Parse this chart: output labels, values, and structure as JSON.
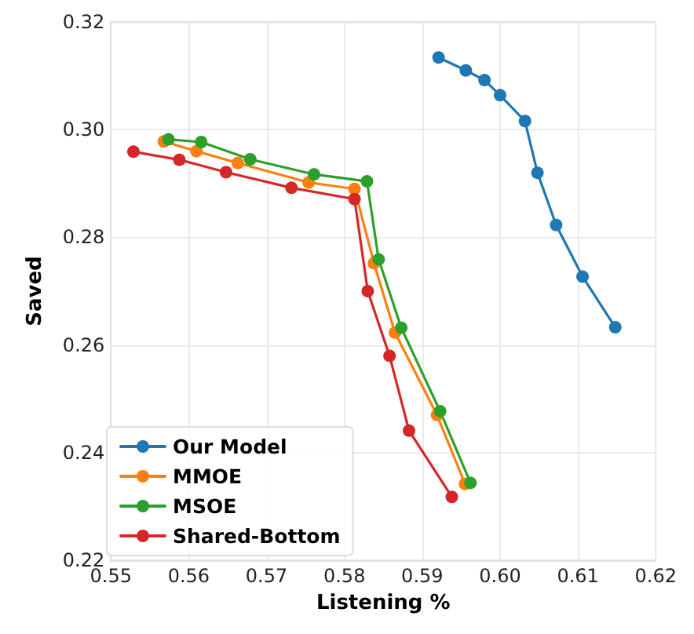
{
  "chart_data": {
    "type": "line",
    "xlabel": "Listening %",
    "ylabel": "Saved",
    "xlim": [
      0.55,
      0.62
    ],
    "xticks": [
      0.55,
      0.56,
      0.57,
      0.58,
      0.59,
      {
        "value": 0.6,
        "label": "0.60"
      },
      0.61,
      0.62
    ],
    "ylim": [
      0.22,
      0.32
    ],
    "yticks": [
      0.22,
      0.24,
      0.26,
      0.28,
      {
        "value": 0.3,
        "label": "0.30"
      },
      0.32
    ],
    "grid": true,
    "legend": "bottom left",
    "marker": "circle",
    "line_style": "solid",
    "series": [
      {
        "name": "Our Model",
        "color": "#1f77b4",
        "x": [
          0.5921,
          0.5956,
          0.598,
          0.6,
          0.6032,
          0.6048,
          0.6072,
          0.6106,
          0.6148
        ],
        "values": [
          0.3134,
          0.311,
          0.3092,
          0.3064,
          0.3016,
          0.292,
          0.2823,
          0.2727,
          0.2633
        ]
      },
      {
        "name": "MMOE",
        "color": "#ff7f0e",
        "x": [
          0.5568,
          0.561,
          0.5663,
          0.5754,
          0.5813,
          0.5838,
          0.5865,
          0.5919,
          0.5955
        ],
        "values": [
          0.2978,
          0.296,
          0.2938,
          0.2902,
          0.289,
          0.2752,
          0.2623,
          0.247,
          0.2342
        ]
      },
      {
        "name": "MSOE",
        "color": "#2ca02c",
        "x": [
          0.5574,
          0.5616,
          0.5679,
          0.5761,
          0.5829,
          0.5844,
          0.5873,
          0.5923,
          0.5962
        ],
        "values": [
          0.2982,
          0.2977,
          0.2945,
          0.2917,
          0.2904,
          0.2759,
          0.2632,
          0.2477,
          0.2344
        ]
      },
      {
        "name": "Shared-Bottom",
        "color": "#d62728",
        "x": [
          0.5529,
          0.5588,
          0.5648,
          0.5732,
          0.5813,
          0.583,
          0.5858,
          0.5883,
          0.5938
        ],
        "values": [
          0.2959,
          0.2944,
          0.2921,
          0.2892,
          0.2871,
          0.27,
          0.258,
          0.2441,
          0.2318
        ]
      }
    ]
  }
}
